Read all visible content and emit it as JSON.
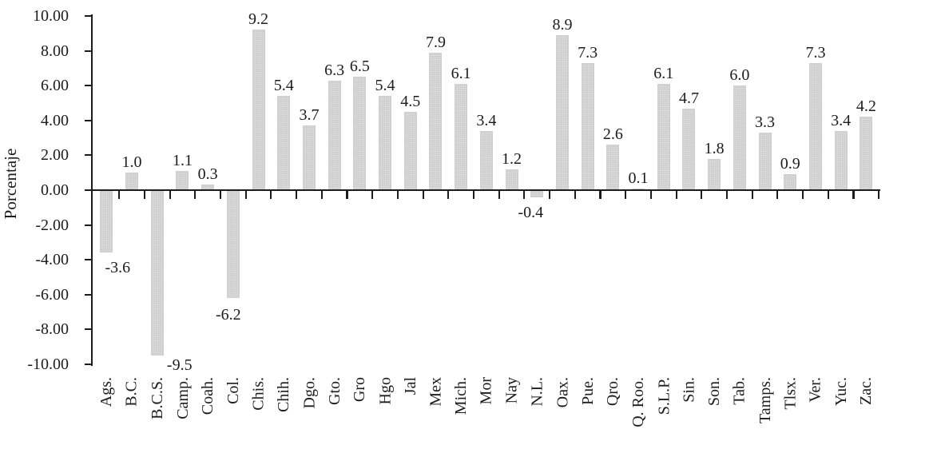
{
  "chart_data": {
    "type": "bar",
    "title": "",
    "ylabel": "Porcentaje",
    "xlabel": "",
    "ylim": [
      -10,
      10
    ],
    "ytick_step": 2,
    "grid": false,
    "legend": "none",
    "yticks": [
      "10.00",
      "8.00",
      "6.00",
      "4.00",
      "2.00",
      "0.00",
      "-2.00",
      "-4.00",
      "-6.00",
      "-8.00",
      "-10.00"
    ],
    "ytick_values": [
      10,
      8,
      6,
      4,
      2,
      0,
      -2,
      -4,
      -6,
      -8,
      -10
    ],
    "categories": [
      "Ags.",
      "B.C.",
      "B.C.S.",
      "Camp.",
      "Coah.",
      "Col.",
      "Chis.",
      "Chih.",
      "Dgo.",
      "Gto.",
      "Gro",
      "Hgo",
      "Jal",
      "Mex",
      "Mich.",
      "Mor",
      "Nay",
      "N.L.",
      "Oax.",
      "Pue.",
      "Qro.",
      "Q. Roo.",
      "S.L.P.",
      "Sin.",
      "Son.",
      "Tab.",
      "Tamps.",
      "Tlsx.",
      "Ver.",
      "Yuc.",
      "Zac."
    ],
    "values": [
      -3.6,
      1.0,
      -9.5,
      1.1,
      0.3,
      -6.2,
      9.2,
      5.4,
      3.7,
      6.3,
      6.5,
      5.4,
      4.5,
      7.9,
      6.1,
      3.4,
      1.2,
      -0.4,
      8.9,
      7.3,
      2.6,
      0.1,
      6.1,
      4.7,
      1.8,
      6.0,
      3.3,
      0.9,
      7.3,
      3.4,
      4.2
    ],
    "value_labels": [
      "-3.6",
      "1.0",
      "-9.5",
      "1.1",
      "0.3",
      "-6.2",
      "9.2",
      "5.4",
      "3.7",
      "6.3",
      "6.5",
      "5.4",
      "4.5",
      "7.9",
      "6.1",
      "3.4",
      "1.2",
      "-0.4",
      "8.9",
      "7.3",
      "2.6",
      "0.1",
      "6.1",
      "4.7",
      "1.8",
      "6.0",
      "3.3",
      "0.9",
      "7.3",
      "3.4",
      "4.2"
    ],
    "colors": {
      "bar_fill": "#dadada",
      "bar_dot": "#c7c7c7",
      "bar_border": "#cfcfcf",
      "axis": "#1c1c1c",
      "text": "#1c1c1c",
      "background": "#ffffff"
    }
  }
}
